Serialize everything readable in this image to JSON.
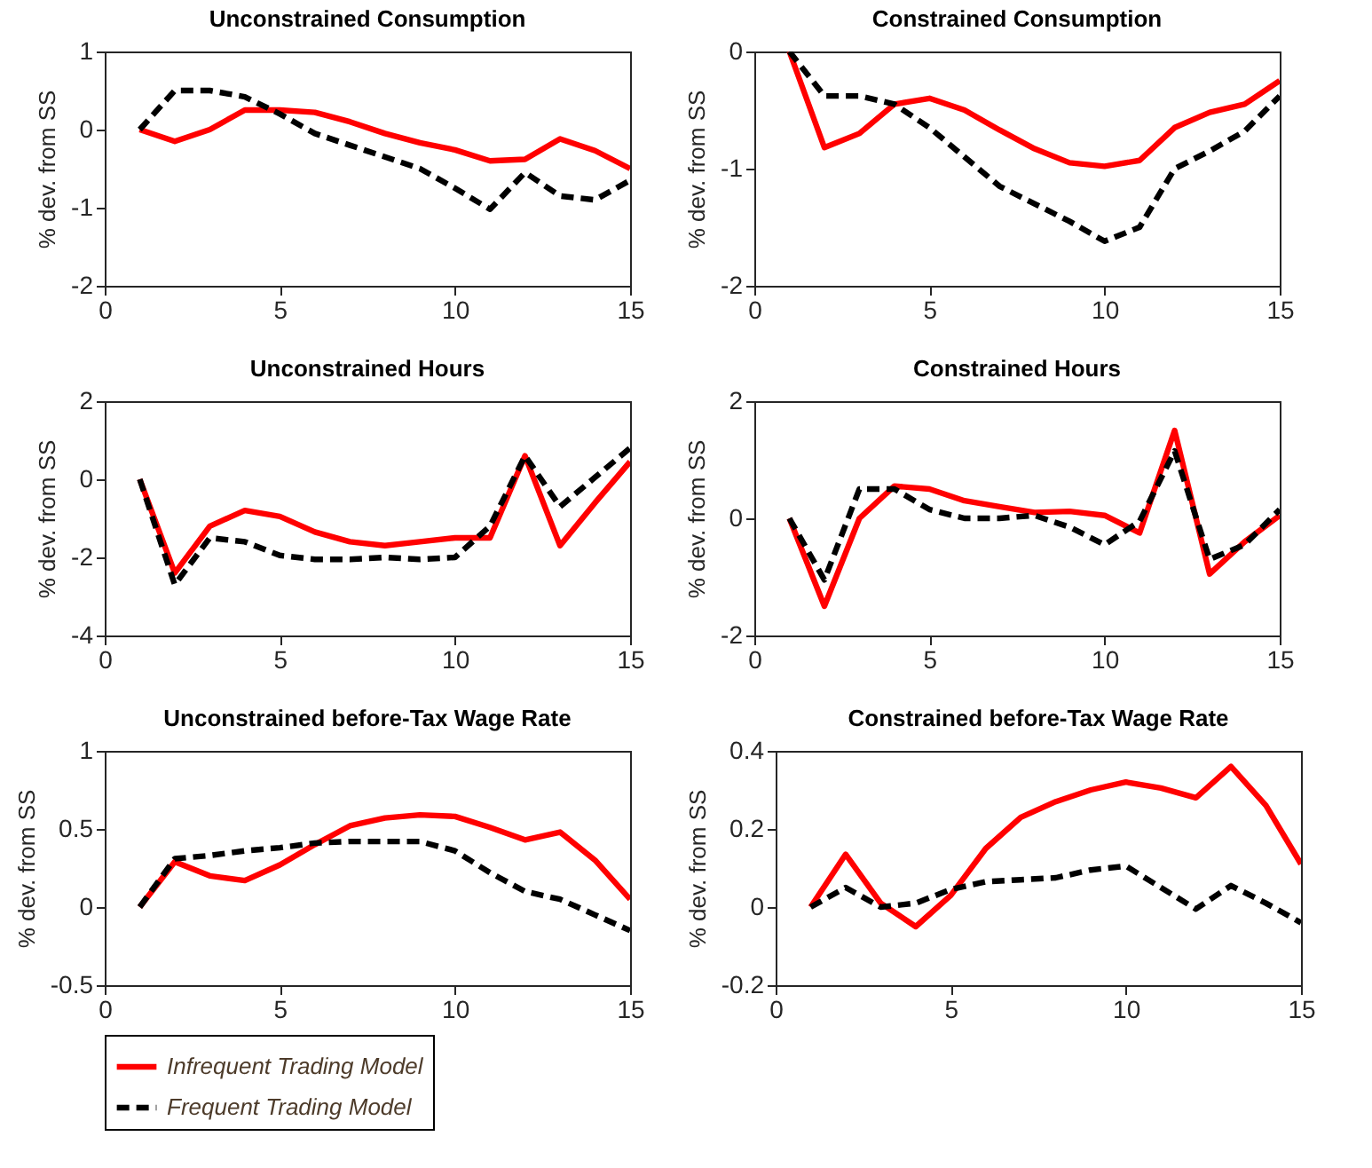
{
  "chart_data": [
    {
      "type": "line",
      "title": "Unconstrained Consumption",
      "ylabel": "% dev. from SS",
      "x": [
        1,
        2,
        3,
        4,
        5,
        6,
        7,
        8,
        9,
        10,
        11,
        12,
        13,
        14,
        15
      ],
      "xlim": [
        0,
        15
      ],
      "xticks": [
        0,
        5,
        10,
        15
      ],
      "ylim": [
        -2,
        1
      ],
      "yticks": [
        -2,
        -1,
        0,
        1
      ],
      "grid": false,
      "legend": "bottom",
      "series": [
        {
          "name": "Infrequent Trading Model",
          "color": "#ff0000",
          "line_style": "solid",
          "values": [
            0,
            -0.15,
            0,
            0.25,
            0.25,
            0.22,
            0.1,
            -0.05,
            -0.17,
            -0.26,
            -0.4,
            -0.38,
            -0.12,
            -0.27,
            -0.5
          ]
        },
        {
          "name": "Frequent Trading Model",
          "color": "#000000",
          "line_style": "dashed",
          "values": [
            0,
            0.5,
            0.5,
            0.42,
            0.2,
            -0.05,
            -0.2,
            -0.35,
            -0.5,
            -0.75,
            -1.02,
            -0.55,
            -0.85,
            -0.9,
            -0.65
          ]
        }
      ]
    },
    {
      "type": "line",
      "title": "Constrained Consumption",
      "ylabel": "% dev. from SS",
      "x": [
        1,
        2,
        3,
        4,
        5,
        6,
        7,
        8,
        9,
        10,
        11,
        12,
        13,
        14,
        15
      ],
      "xlim": [
        0,
        15
      ],
      "xticks": [
        0,
        5,
        10,
        15
      ],
      "ylim": [
        -2,
        0
      ],
      "yticks": [
        -2,
        -1,
        0
      ],
      "grid": false,
      "legend": "bottom",
      "series": [
        {
          "name": "Infrequent Trading Model",
          "color": "#ff0000",
          "line_style": "solid",
          "values": [
            0,
            -0.82,
            -0.7,
            -0.45,
            -0.4,
            -0.5,
            -0.67,
            -0.83,
            -0.95,
            -0.98,
            -0.93,
            -0.65,
            -0.52,
            -0.45,
            -0.25
          ]
        },
        {
          "name": "Frequent Trading Model",
          "color": "#000000",
          "line_style": "dashed",
          "values": [
            0,
            -0.38,
            -0.38,
            -0.45,
            -0.65,
            -0.9,
            -1.15,
            -1.3,
            -1.45,
            -1.62,
            -1.5,
            -1.0,
            -0.85,
            -0.68,
            -0.38
          ]
        }
      ]
    },
    {
      "type": "line",
      "title": "Unconstrained Hours",
      "ylabel": "% dev. from SS",
      "x": [
        1,
        2,
        3,
        4,
        5,
        6,
        7,
        8,
        9,
        10,
        11,
        12,
        13,
        14,
        15
      ],
      "xlim": [
        0,
        15
      ],
      "xticks": [
        0,
        5,
        10,
        15
      ],
      "ylim": [
        -4,
        2
      ],
      "yticks": [
        -4,
        -2,
        0,
        2
      ],
      "grid": false,
      "legend": "bottom",
      "series": [
        {
          "name": "Infrequent Trading Model",
          "color": "#ff0000",
          "line_style": "solid",
          "values": [
            0,
            -2.4,
            -1.2,
            -0.8,
            -0.95,
            -1.35,
            -1.6,
            -1.7,
            -1.6,
            -1.5,
            -1.5,
            0.6,
            -1.7,
            -0.6,
            0.45
          ]
        },
        {
          "name": "Frequent Trading Model",
          "color": "#000000",
          "line_style": "dashed",
          "values": [
            0,
            -2.7,
            -1.5,
            -1.6,
            -1.95,
            -2.05,
            -2.05,
            -2.0,
            -2.05,
            -2.0,
            -1.2,
            0.6,
            -0.7,
            0.05,
            0.8
          ]
        }
      ]
    },
    {
      "type": "line",
      "title": "Constrained Hours",
      "ylabel": "% dev. from SS",
      "x": [
        1,
        2,
        3,
        4,
        5,
        6,
        7,
        8,
        9,
        10,
        11,
        12,
        13,
        14,
        15
      ],
      "xlim": [
        0,
        15
      ],
      "xticks": [
        0,
        5,
        10,
        15
      ],
      "ylim": [
        -2,
        2
      ],
      "yticks": [
        -2,
        0,
        2
      ],
      "grid": false,
      "legend": "bottom",
      "series": [
        {
          "name": "Infrequent Trading Model",
          "color": "#ff0000",
          "line_style": "solid",
          "values": [
            0,
            -1.5,
            0,
            0.55,
            0.5,
            0.3,
            0.2,
            0.1,
            0.12,
            0.05,
            -0.25,
            1.5,
            -0.95,
            -0.4,
            0.05
          ]
        },
        {
          "name": "Frequent Trading Model",
          "color": "#000000",
          "line_style": "dashed",
          "values": [
            0,
            -1.05,
            0.5,
            0.5,
            0.15,
            0,
            0,
            0.05,
            -0.15,
            -0.45,
            -0.05,
            1.15,
            -0.7,
            -0.45,
            0.15
          ]
        }
      ]
    },
    {
      "type": "line",
      "title": "Unconstrained before-Tax Wage Rate",
      "ylabel": "% dev. from SS",
      "x": [
        1,
        2,
        3,
        4,
        5,
        6,
        7,
        8,
        9,
        10,
        11,
        12,
        13,
        14,
        15
      ],
      "xlim": [
        0,
        15
      ],
      "xticks": [
        0,
        5,
        10,
        15
      ],
      "ylim": [
        -0.5,
        1
      ],
      "yticks": [
        -0.5,
        0,
        0.5,
        1
      ],
      "grid": false,
      "legend": "bottom",
      "series": [
        {
          "name": "Infrequent Trading Model",
          "color": "#ff0000",
          "line_style": "solid",
          "values": [
            0,
            0.29,
            0.2,
            0.17,
            0.27,
            0.4,
            0.52,
            0.57,
            0.59,
            0.58,
            0.51,
            0.43,
            0.48,
            0.3,
            0.05
          ]
        },
        {
          "name": "Frequent Trading Model",
          "color": "#000000",
          "line_style": "dashed",
          "values": [
            0,
            0.31,
            0.33,
            0.36,
            0.38,
            0.41,
            0.42,
            0.42,
            0.42,
            0.36,
            0.22,
            0.1,
            0.05,
            -0.05,
            -0.15
          ]
        }
      ]
    },
    {
      "type": "line",
      "title": "Constrained before-Tax Wage Rate",
      "ylabel": "% dev. from SS",
      "x": [
        1,
        2,
        3,
        4,
        5,
        6,
        7,
        8,
        9,
        10,
        11,
        12,
        13,
        14,
        15
      ],
      "xlim": [
        0,
        15
      ],
      "xticks": [
        0,
        5,
        10,
        15
      ],
      "ylim": [
        -0.2,
        0.4
      ],
      "yticks": [
        -0.2,
        0,
        0.2,
        0.4
      ],
      "grid": false,
      "legend": "bottom",
      "series": [
        {
          "name": "Infrequent Trading Model",
          "color": "#ff0000",
          "line_style": "solid",
          "values": [
            0,
            0.135,
            0.01,
            -0.05,
            0.03,
            0.15,
            0.23,
            0.27,
            0.3,
            0.32,
            0.305,
            0.28,
            0.36,
            0.26,
            0.11
          ]
        },
        {
          "name": "Frequent Trading Model",
          "color": "#000000",
          "line_style": "dashed",
          "values": [
            0,
            0.05,
            0,
            0.01,
            0.045,
            0.065,
            0.07,
            0.075,
            0.095,
            0.105,
            0.05,
            -0.005,
            0.055,
            0.01,
            -0.04
          ]
        }
      ]
    }
  ]
}
